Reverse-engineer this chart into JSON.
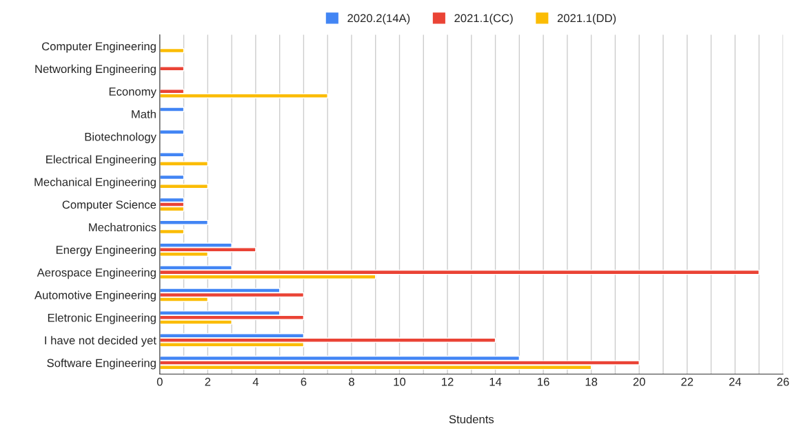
{
  "chart_data": {
    "type": "bar",
    "orientation": "horizontal",
    "xlabel": "Students",
    "categories": [
      "Computer Engineering",
      "Networking Engineering",
      "Economy",
      "Math",
      "Biotechnology",
      "Electrical Engineering",
      "Mechanical Engineering",
      "Computer Science",
      "Mechatronics",
      "Energy Engineering",
      "Aerospace Engineering",
      "Automotive Engineering",
      "Eletronic Engineering",
      "I have not decided yet",
      "Software Engineering"
    ],
    "series": [
      {
        "name": "2020.2(14A)",
        "color": "#4285f4",
        "values": [
          null,
          null,
          null,
          1,
          1,
          1,
          1,
          1,
          2,
          3,
          3,
          5,
          5,
          6,
          15
        ]
      },
      {
        "name": "2021.1(CC)",
        "color": "#ea4335",
        "values": [
          null,
          1,
          1,
          null,
          null,
          null,
          null,
          1,
          null,
          4,
          25,
          6,
          6,
          14,
          20
        ]
      },
      {
        "name": "2021.1(DD)",
        "color": "#fbbc04",
        "values": [
          1,
          null,
          7,
          null,
          null,
          2,
          2,
          1,
          1,
          2,
          9,
          2,
          3,
          6,
          18
        ]
      }
    ],
    "xlim": [
      0,
      26
    ],
    "xticks": [
      0,
      2,
      4,
      6,
      8,
      10,
      12,
      14,
      16,
      18,
      20,
      22,
      24,
      26
    ],
    "grid": "x",
    "legend": "top"
  }
}
